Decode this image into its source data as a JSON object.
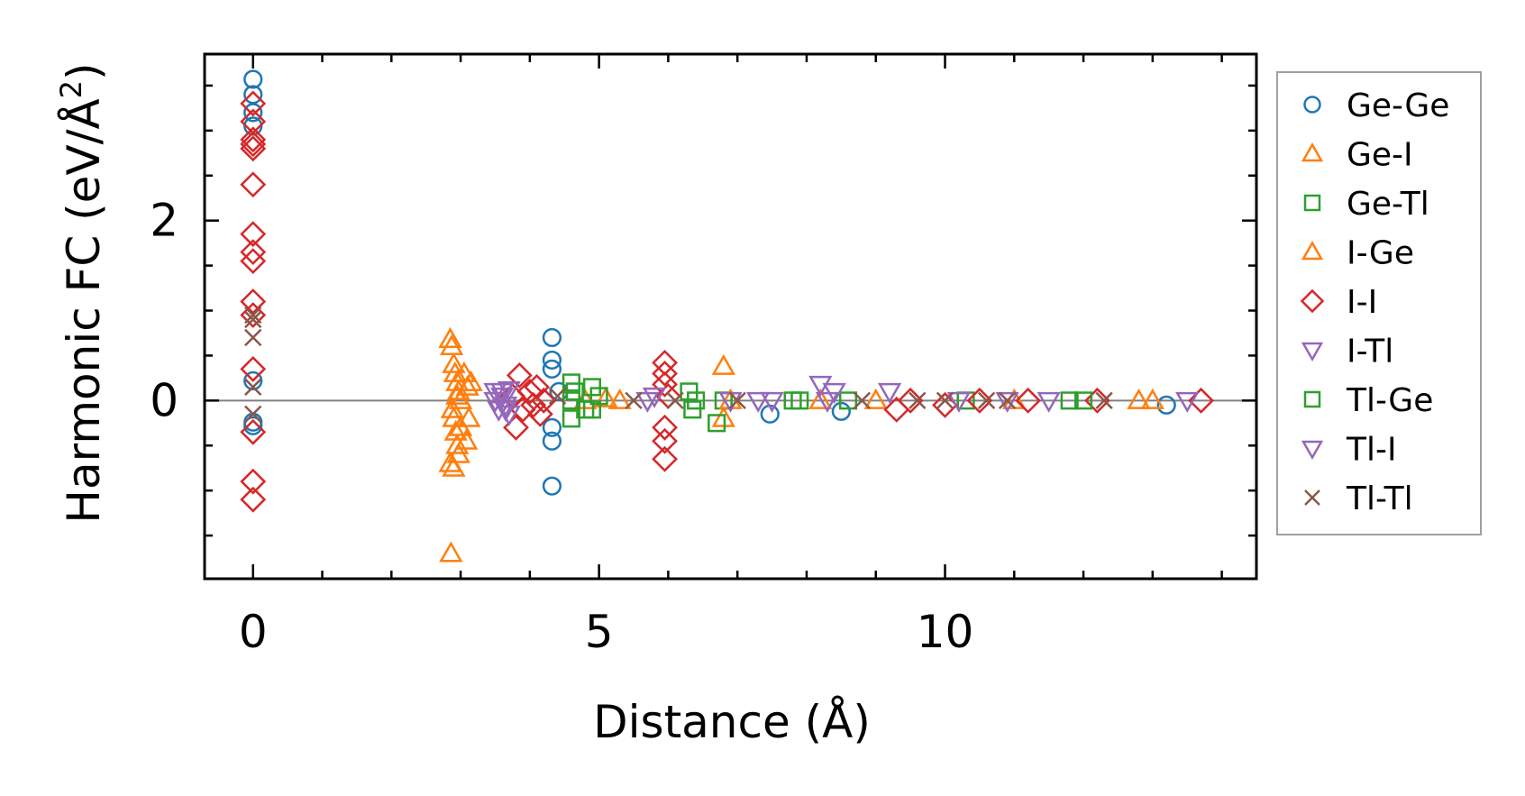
{
  "chart_data": {
    "type": "scatter",
    "xlabel": "Distance (Å)",
    "ylabel_main": "Harmonic FC (eV/Å",
    "ylabel_sup": "2",
    "ylabel_end": ")",
    "xlim": [
      -0.7,
      14.5
    ],
    "ylim": [
      -1.98,
      3.85
    ],
    "xticks": [
      0,
      5,
      10
    ],
    "xtick_labels": [
      "0",
      "5",
      "10"
    ],
    "xminor": [
      1,
      2,
      3,
      4,
      6,
      7,
      8,
      9,
      11,
      12,
      13,
      14
    ],
    "yticks": [
      0,
      2
    ],
    "ytick_labels": [
      "0",
      "2"
    ],
    "yminor": [
      -1.5,
      -1,
      -0.5,
      0.5,
      1,
      1.5,
      2.5,
      3,
      3.5
    ],
    "zero_line_color": "#808080",
    "legend_position": "outside-right",
    "series": [
      {
        "name": "Ge-Ge",
        "marker": "circle",
        "color": "#1f77b4",
        "points": [
          [
            0,
            3.57
          ],
          [
            0,
            3.4
          ],
          [
            0,
            3.2
          ],
          [
            0,
            3.05
          ],
          [
            0,
            0.22
          ],
          [
            0,
            -0.24
          ],
          [
            0,
            -0.28
          ],
          [
            4.32,
            0.7
          ],
          [
            4.32,
            0.45
          ],
          [
            4.32,
            0.35
          ],
          [
            4.32,
            -0.3
          ],
          [
            4.32,
            -0.45
          ],
          [
            4.32,
            -0.95
          ],
          [
            4.42,
            0.1
          ],
          [
            7.47,
            -0.15
          ],
          [
            8.5,
            -0.12
          ],
          [
            13.2,
            -0.05
          ]
        ]
      },
      {
        "name": "Ge-I",
        "marker": "triangle-up",
        "color": "#ff7f0e",
        "points": [
          [
            2.85,
            0.68
          ],
          [
            2.87,
            0.6
          ],
          [
            2.9,
            0.4
          ],
          [
            2.92,
            0.3
          ],
          [
            2.95,
            0.2
          ],
          [
            2.97,
            0.1
          ],
          [
            3.0,
            0.0
          ],
          [
            2.88,
            -0.1
          ],
          [
            2.9,
            -0.2
          ],
          [
            2.93,
            -0.35
          ],
          [
            2.95,
            -0.5
          ],
          [
            2.97,
            -0.6
          ],
          [
            2.85,
            -0.7
          ],
          [
            2.9,
            -0.75
          ],
          [
            3.05,
            0.3
          ],
          [
            3.08,
            -0.45
          ],
          [
            3.1,
            0.15
          ],
          [
            3.12,
            -0.2
          ],
          [
            2.86,
            -1.7
          ],
          [
            4.8,
            0.0
          ],
          [
            5.1,
            0.02
          ],
          [
            6.8,
            0.38
          ],
          [
            6.8,
            -0.2
          ],
          [
            8.2,
            0.0
          ],
          [
            12.8,
            0.0
          ],
          [
            13.0,
            0.0
          ]
        ]
      },
      {
        "name": "Ge-Tl",
        "marker": "square",
        "color": "#2ca02c",
        "points": [
          [
            4.6,
            0.2
          ],
          [
            4.6,
            0.0
          ],
          [
            4.6,
            -0.2
          ],
          [
            4.9,
            0.15
          ],
          [
            4.9,
            -0.1
          ],
          [
            5.0,
            0.05
          ],
          [
            6.3,
            0.1
          ],
          [
            6.35,
            -0.1
          ],
          [
            6.7,
            -0.25
          ],
          [
            6.8,
            0.0
          ],
          [
            7.9,
            0.0
          ],
          [
            8.6,
            0.0
          ],
          [
            10.3,
            0.0
          ],
          [
            11.8,
            0.0
          ]
        ]
      },
      {
        "name": "I-Ge",
        "marker": "triangle-up",
        "color": "#ff7f0e",
        "points": [
          [
            2.95,
            0.05
          ],
          [
            3.0,
            -0.3
          ],
          [
            3.15,
            0.2
          ],
          [
            5.3,
            0.0
          ],
          [
            6.9,
            0.0
          ],
          [
            9.0,
            0.0
          ],
          [
            11.0,
            0.0
          ]
        ]
      },
      {
        "name": "I-I",
        "marker": "diamond",
        "color": "#d62728",
        "points": [
          [
            0,
            3.3
          ],
          [
            0,
            3.1
          ],
          [
            0,
            2.9
          ],
          [
            0,
            2.85
          ],
          [
            0,
            2.8
          ],
          [
            0,
            2.4
          ],
          [
            0,
            1.85
          ],
          [
            0,
            1.65
          ],
          [
            0,
            1.55
          ],
          [
            0,
            1.1
          ],
          [
            0,
            0.95
          ],
          [
            0,
            0.35
          ],
          [
            0,
            -0.35
          ],
          [
            0,
            -0.9
          ],
          [
            0,
            -1.1
          ],
          [
            3.75,
            0.05
          ],
          [
            3.8,
            -0.3
          ],
          [
            3.85,
            0.28
          ],
          [
            3.9,
            -0.1
          ],
          [
            4.0,
            0.1
          ],
          [
            4.05,
            -0.05
          ],
          [
            4.1,
            0.15
          ],
          [
            4.15,
            -0.15
          ],
          [
            4.2,
            0.0
          ],
          [
            5.95,
            0.42
          ],
          [
            5.95,
            0.3
          ],
          [
            5.95,
            0.18
          ],
          [
            5.95,
            -0.3
          ],
          [
            5.95,
            -0.45
          ],
          [
            5.95,
            -0.65
          ],
          [
            6.0,
            0.05
          ],
          [
            9.3,
            -0.1
          ],
          [
            9.5,
            0.0
          ],
          [
            10.0,
            -0.05
          ],
          [
            10.5,
            0.0
          ],
          [
            11.2,
            0.0
          ],
          [
            12.2,
            0.0
          ],
          [
            13.7,
            0.0
          ]
        ]
      },
      {
        "name": "I-Tl",
        "marker": "triangle-down",
        "color": "#9467bd",
        "points": [
          [
            3.5,
            0.1
          ],
          [
            3.55,
            -0.1
          ],
          [
            3.6,
            0.05
          ],
          [
            3.65,
            -0.05
          ],
          [
            3.7,
            0.12
          ],
          [
            3.7,
            -0.15
          ],
          [
            5.7,
            0.0
          ],
          [
            6.9,
            0.0
          ],
          [
            7.3,
            0.0
          ],
          [
            8.2,
            0.18
          ],
          [
            8.3,
            0.0
          ],
          [
            9.2,
            0.1
          ],
          [
            10.2,
            0.0
          ],
          [
            11.5,
            0.0
          ],
          [
            13.5,
            0.0
          ]
        ]
      },
      {
        "name": "Tl-Ge",
        "marker": "square",
        "color": "#2ca02c",
        "points": [
          [
            4.65,
            0.1
          ],
          [
            4.8,
            -0.1
          ],
          [
            6.4,
            0.0
          ],
          [
            7.8,
            0.0
          ],
          [
            12.0,
            0.0
          ]
        ]
      },
      {
        "name": "Tl-I",
        "marker": "triangle-down",
        "color": "#9467bd",
        "points": [
          [
            3.5,
            0.0
          ],
          [
            3.6,
            0.1
          ],
          [
            3.65,
            -0.1
          ],
          [
            5.8,
            0.05
          ],
          [
            7.5,
            0.0
          ],
          [
            8.4,
            0.1
          ],
          [
            10.9,
            0.0
          ]
        ]
      },
      {
        "name": "Tl-Tl",
        "marker": "x",
        "color": "#8c564b",
        "points": [
          [
            0,
            0.95
          ],
          [
            0,
            0.9
          ],
          [
            0,
            0.7
          ],
          [
            0,
            0.15
          ],
          [
            0,
            -0.15
          ],
          [
            4.4,
            0.05
          ],
          [
            5.5,
            0.0
          ],
          [
            6.1,
            0.0
          ],
          [
            7.0,
            0.0
          ],
          [
            8.8,
            0.0
          ],
          [
            9.6,
            0.0
          ],
          [
            10.0,
            0.0
          ],
          [
            10.6,
            0.0
          ],
          [
            10.9,
            0.0
          ],
          [
            12.3,
            0.0
          ]
        ]
      }
    ]
  }
}
